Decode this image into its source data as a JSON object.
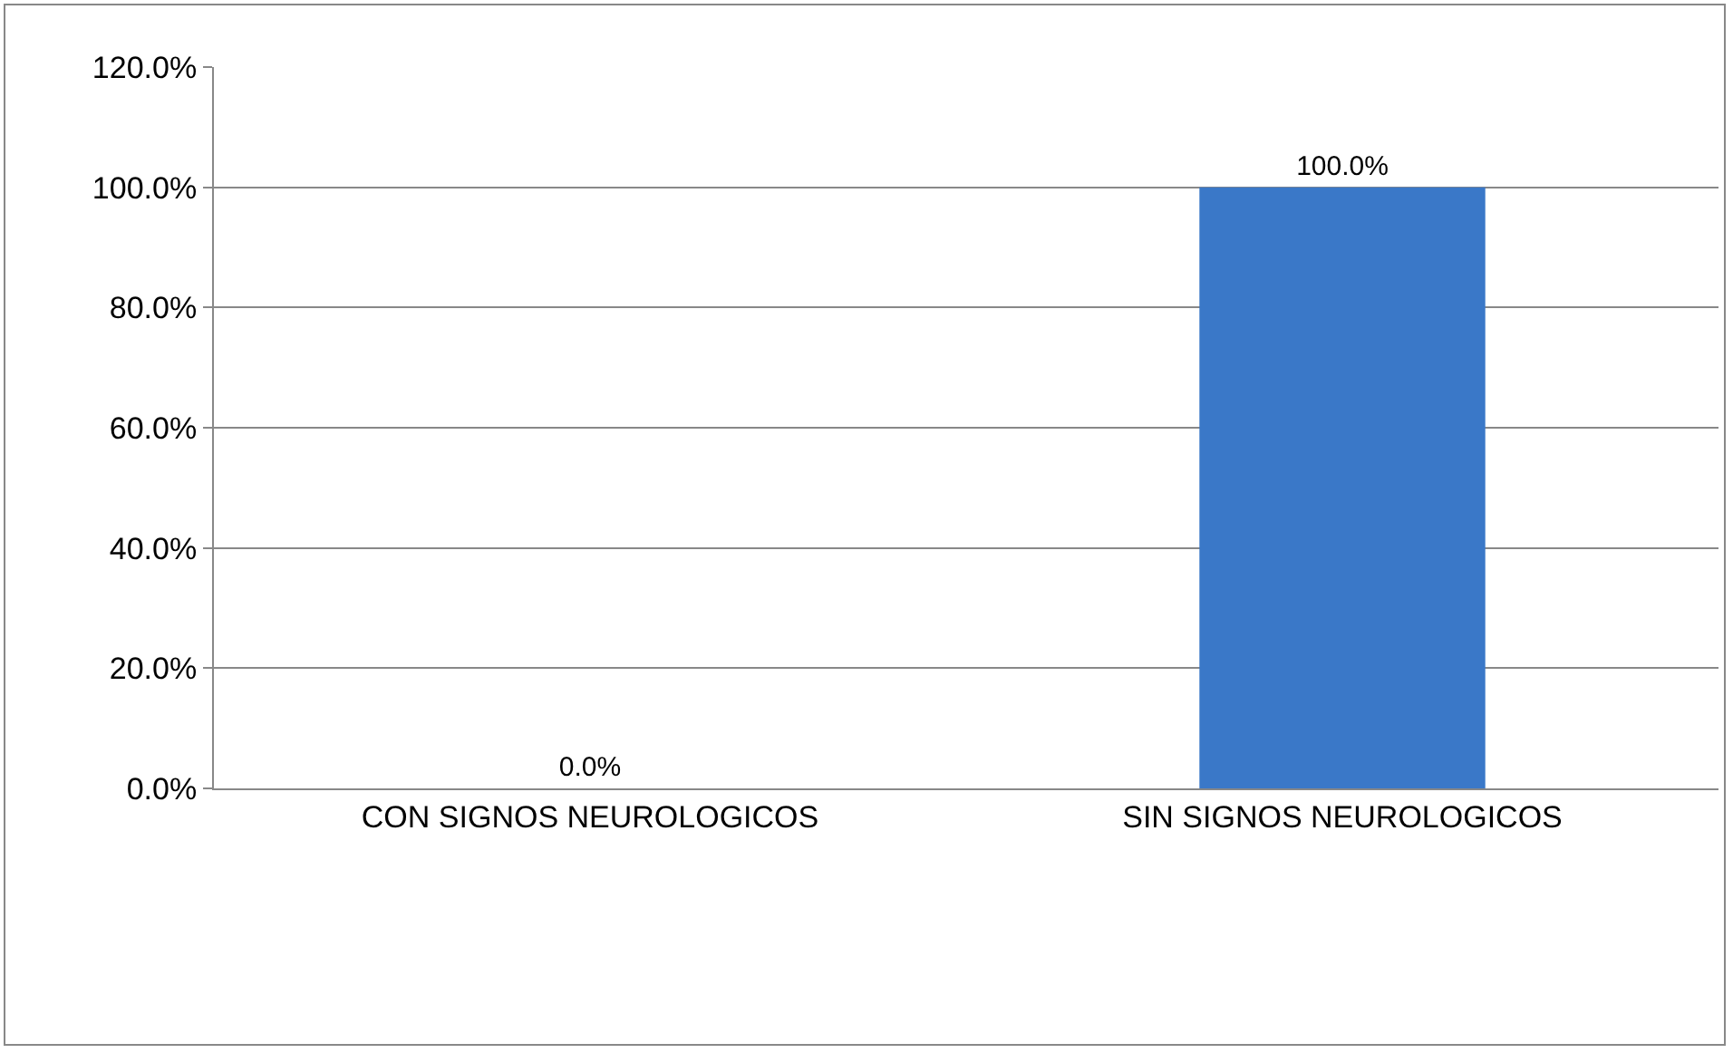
{
  "chart_data": {
    "type": "bar",
    "categories": [
      "CON SIGNOS NEUROLOGICOS",
      "SIN SIGNOS NEUROLOGICOS"
    ],
    "values": [
      0,
      100
    ],
    "value_labels": [
      "0.0%",
      "100.0%"
    ],
    "color": "#3a78c8",
    "ylim": [
      0,
      120
    ],
    "yticks": [
      {
        "value": 0,
        "label": "0.0%"
      },
      {
        "value": 20,
        "label": "20.0%"
      },
      {
        "value": 40,
        "label": "40.0%"
      },
      {
        "value": 60,
        "label": "60.0%"
      },
      {
        "value": 80,
        "label": "80.0%"
      },
      {
        "value": 100,
        "label": "100.0%"
      },
      {
        "value": 120,
        "label": "120.0%"
      }
    ],
    "grid": "y"
  }
}
